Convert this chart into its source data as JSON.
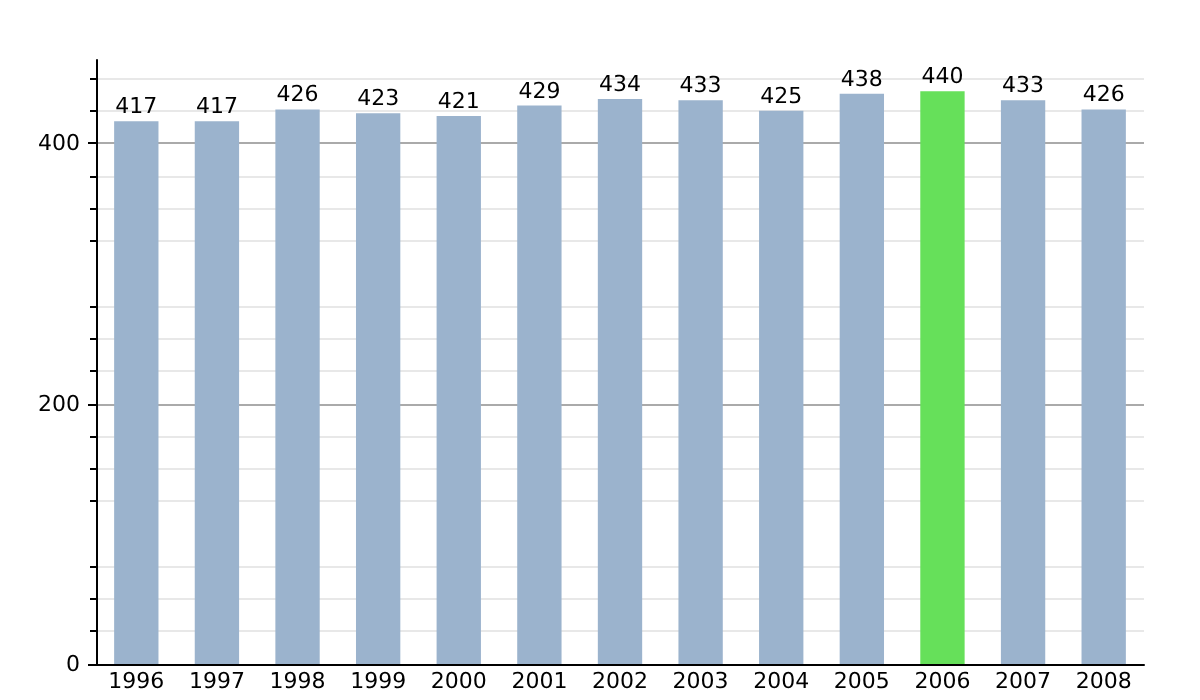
{
  "chart_data": {
    "type": "bar",
    "categories": [
      "1996",
      "1997",
      "1998",
      "1999",
      "2000",
      "2001",
      "2002",
      "2003",
      "2004",
      "2005",
      "2006",
      "2007",
      "2008"
    ],
    "values": [
      417,
      417,
      426,
      423,
      421,
      429,
      434,
      433,
      425,
      438,
      440,
      433,
      426
    ],
    "colors": [
      "#9bb3cd",
      "#9bb3cd",
      "#9bb3cd",
      "#9bb3cd",
      "#9bb3cd",
      "#9bb3cd",
      "#9bb3cd",
      "#9bb3cd",
      "#9bb3cd",
      "#9bb3cd",
      "#66e05a",
      "#9bb3cd",
      "#9bb3cd"
    ],
    "ylim": [
      0,
      464
    ],
    "yticks": [
      0,
      200,
      400
    ],
    "grid": "y",
    "data_labels": true
  }
}
